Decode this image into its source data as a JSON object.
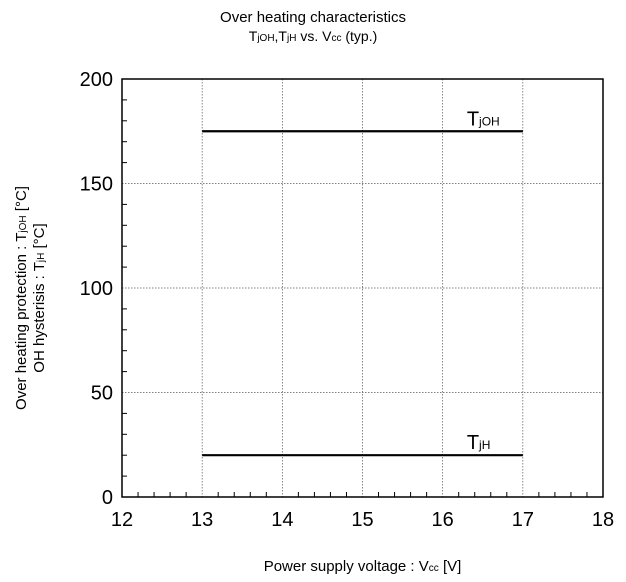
{
  "chart_data": {
    "type": "line",
    "title": {
      "line1": "Over heating characteristics",
      "line2_parts": [
        "T",
        "jOH",
        ",T",
        "jH",
        " vs. V",
        "cc",
        " (typ.)"
      ]
    },
    "xlabel": {
      "parts": [
        "Power supply voltage : V",
        "cc",
        " [V]"
      ]
    },
    "ylabel": {
      "line1_parts": [
        "Over heating protection : T",
        "jOH",
        " [°C]"
      ],
      "line2_parts": [
        "OH hysterisis : T",
        "jH",
        " [°C]"
      ]
    },
    "xlim": [
      12,
      18
    ],
    "ylim": [
      0,
      200
    ],
    "x_ticks": [
      12,
      13,
      14,
      15,
      16,
      17,
      18
    ],
    "y_ticks": [
      0,
      50,
      100,
      150,
      200
    ],
    "grid": true,
    "series": [
      {
        "name_main": "T",
        "name_sub": "jOH",
        "x": [
          13,
          17
        ],
        "y": [
          175,
          175
        ]
      },
      {
        "name_main": "T",
        "name_sub": "jH",
        "x": [
          13,
          17
        ],
        "y": [
          20,
          20
        ]
      }
    ]
  }
}
